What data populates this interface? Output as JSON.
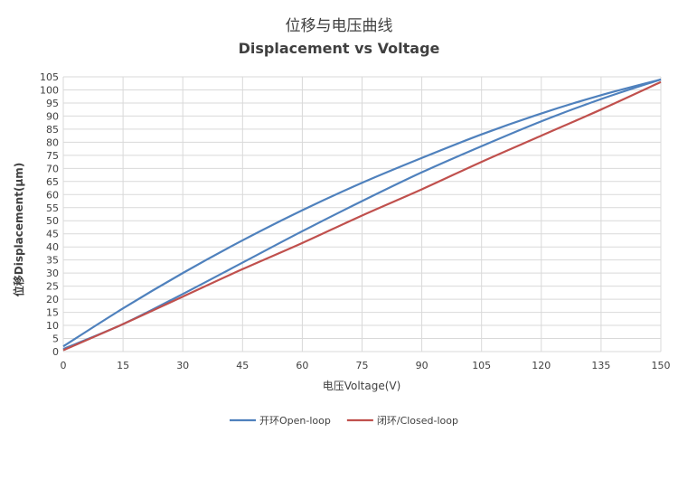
{
  "chart_data": {
    "type": "line",
    "title": "位移与电压曲线",
    "subtitle": "Displacement vs Voltage",
    "xlabel": "电压Voltage(V)",
    "ylabel": "位移Displacement(μm)",
    "xlim": [
      0,
      150
    ],
    "ylim": [
      0,
      105
    ],
    "x_ticks": [
      "0",
      "15",
      "30",
      "45",
      "60",
      "75",
      "90",
      "105",
      "120",
      "135",
      "150"
    ],
    "y_ticks": [
      "0",
      "5",
      "10",
      "15",
      "20",
      "25",
      "30",
      "35",
      "40",
      "45",
      "50",
      "55",
      "60",
      "65",
      "70",
      "75",
      "80",
      "85",
      "90",
      "95",
      "100",
      "105"
    ],
    "grid": "vertical and horizontal",
    "legend": "bottom",
    "series": [
      {
        "name": "开环Open-loop",
        "color": "#4f81bd",
        "x": [
          0,
          15,
          30,
          45,
          60,
          75,
          90,
          105,
          120,
          135,
          150
        ],
        "y": [
          2,
          16.5,
          30,
          42.5,
          54,
          64.5,
          74,
          83,
          91,
          98,
          104
        ]
      },
      {
        "name": "开环Open-loop",
        "color": "#4f81bd",
        "show_in_legend": false,
        "x": [
          0,
          15,
          30,
          45,
          60,
          75,
          90,
          105,
          120,
          135,
          150
        ],
        "y": [
          1,
          10.5,
          22,
          34,
          46,
          57.5,
          68.5,
          78.5,
          88,
          96.5,
          104
        ]
      },
      {
        "name": "闭环/Closed-loop",
        "color": "#c0504d",
        "x": [
          0,
          15,
          30,
          45,
          60,
          75,
          90,
          105,
          120,
          135,
          150
        ],
        "y": [
          0.5,
          10.5,
          21,
          31.5,
          41.5,
          52,
          62,
          72.5,
          82.5,
          92.5,
          103
        ]
      }
    ]
  }
}
